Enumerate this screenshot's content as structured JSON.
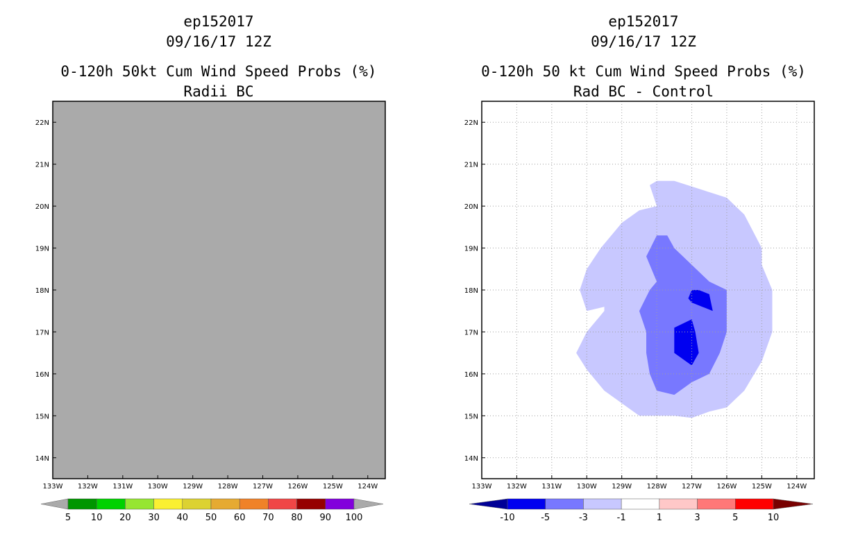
{
  "chart_data": [
    {
      "type": "heatmap",
      "id": "left",
      "title_lines": [
        "ep152017",
        "09/16/17 12Z",
        "0-120h 50kt Cum Wind Speed Probs (%)",
        "Radii BC"
      ],
      "x_ticks": [
        "133W",
        "132W",
        "131W",
        "130W",
        "129W",
        "128W",
        "127W",
        "126W",
        "125W",
        "124W"
      ],
      "y_ticks": [
        "22N",
        "21N",
        "20N",
        "19N",
        "18N",
        "17N",
        "16N",
        "15N",
        "14N"
      ],
      "xlim": [
        -133,
        -123.5
      ],
      "ylim": [
        13.5,
        22.5
      ],
      "grid": false,
      "background_color": "#aaaaaa",
      "colorbar": {
        "labels": [
          "5",
          "10",
          "20",
          "30",
          "40",
          "50",
          "60",
          "70",
          "80",
          "90",
          "100"
        ],
        "colors": [
          "#009600",
          "#00d200",
          "#96e632",
          "#faf032",
          "#dcd232",
          "#e6aa32",
          "#f08228",
          "#f04646",
          "#960000",
          "#8200dc"
        ],
        "end_colors": [
          "#aaaaaa",
          "#aaaaaa"
        ]
      }
    },
    {
      "type": "heatmap",
      "id": "right",
      "title_lines": [
        "ep152017",
        "09/16/17 12Z",
        "0-120h 50 kt Cum Wind Speed Probs (%)",
        "Rad BC - Control"
      ],
      "x_ticks": [
        "133W",
        "132W",
        "131W",
        "130W",
        "129W",
        "128W",
        "127W",
        "126W",
        "125W",
        "124W"
      ],
      "y_ticks": [
        "22N",
        "21N",
        "20N",
        "19N",
        "18N",
        "17N",
        "16N",
        "15N",
        "14N"
      ],
      "xlim": [
        -133,
        -123.5
      ],
      "ylim": [
        13.5,
        22.5
      ],
      "grid": true,
      "background_color": "#ffffff",
      "contours": [
        {
          "level": "-3 to -1",
          "color": "#c8c8ff",
          "points": [
            [
              -128.2,
              20.5
            ],
            [
              -128.0,
              20.6
            ],
            [
              -127.5,
              20.6
            ],
            [
              -126.0,
              20.2
            ],
            [
              -125.5,
              19.8
            ],
            [
              -125.0,
              19.0
            ],
            [
              -125.0,
              18.6
            ],
            [
              -124.7,
              18.0
            ],
            [
              -124.7,
              17.0
            ],
            [
              -125.0,
              16.3
            ],
            [
              -125.5,
              15.6
            ],
            [
              -126.0,
              15.2
            ],
            [
              -126.5,
              15.1
            ],
            [
              -127.0,
              14.95
            ],
            [
              -127.5,
              15.0
            ],
            [
              -128.0,
              15.0
            ],
            [
              -128.5,
              15.0
            ],
            [
              -129.0,
              15.3
            ],
            [
              -129.5,
              15.6
            ],
            [
              -130.0,
              16.1
            ],
            [
              -130.3,
              16.5
            ],
            [
              -130.0,
              17.0
            ],
            [
              -129.5,
              17.5
            ],
            [
              -129.5,
              17.6
            ],
            [
              -130.0,
              17.5
            ],
            [
              -130.2,
              18.0
            ],
            [
              -130.0,
              18.5
            ],
            [
              -129.6,
              19.0
            ],
            [
              -129.0,
              19.6
            ],
            [
              -128.5,
              19.9
            ],
            [
              -128.0,
              20.0
            ]
          ]
        },
        {
          "level": "-5 to -3",
          "color": "#7878ff",
          "points": [
            [
              -128.0,
              19.3
            ],
            [
              -127.7,
              19.3
            ],
            [
              -127.5,
              19.0
            ],
            [
              -127.0,
              18.6
            ],
            [
              -126.5,
              18.2
            ],
            [
              -126.0,
              18.0
            ],
            [
              -126.0,
              17.5
            ],
            [
              -126.0,
              17.0
            ],
            [
              -126.2,
              16.5
            ],
            [
              -126.5,
              16.0
            ],
            [
              -127.0,
              15.8
            ],
            [
              -127.5,
              15.5
            ],
            [
              -128.0,
              15.6
            ],
            [
              -128.2,
              16.0
            ],
            [
              -128.3,
              16.5
            ],
            [
              -128.3,
              17.0
            ],
            [
              -128.5,
              17.5
            ],
            [
              -128.2,
              18.0
            ],
            [
              -128.0,
              18.2
            ],
            [
              -128.2,
              18.6
            ],
            [
              -128.3,
              18.8
            ]
          ]
        },
        {
          "level": "-10 to -5",
          "color": "#0000f0",
          "points": [
            [
              -127.0,
              18.0
            ],
            [
              -126.8,
              18.0
            ],
            [
              -126.5,
              17.9
            ],
            [
              -126.4,
              17.5
            ],
            [
              -126.7,
              17.6
            ],
            [
              -127.0,
              17.7
            ],
            [
              -127.1,
              17.8
            ]
          ]
        },
        {
          "level": "-10 to -5",
          "color": "#0000f0",
          "points": [
            [
              -127.5,
              17.1
            ],
            [
              -127.0,
              17.3
            ],
            [
              -126.9,
              17.0
            ],
            [
              -126.8,
              16.5
            ],
            [
              -127.0,
              16.2
            ],
            [
              -127.5,
              16.5
            ],
            [
              -127.5,
              16.8
            ]
          ]
        }
      ],
      "colorbar": {
        "labels": [
          "-10",
          "-5",
          "-3",
          "-1",
          "1",
          "3",
          "5",
          "10"
        ],
        "colors": [
          "#0000f0",
          "#7878ff",
          "#c8c8ff",
          "#ffffff",
          "#ffc8c8",
          "#ff7878",
          "#ff0000"
        ],
        "end_colors": [
          "#000096",
          "#780000"
        ]
      }
    }
  ]
}
